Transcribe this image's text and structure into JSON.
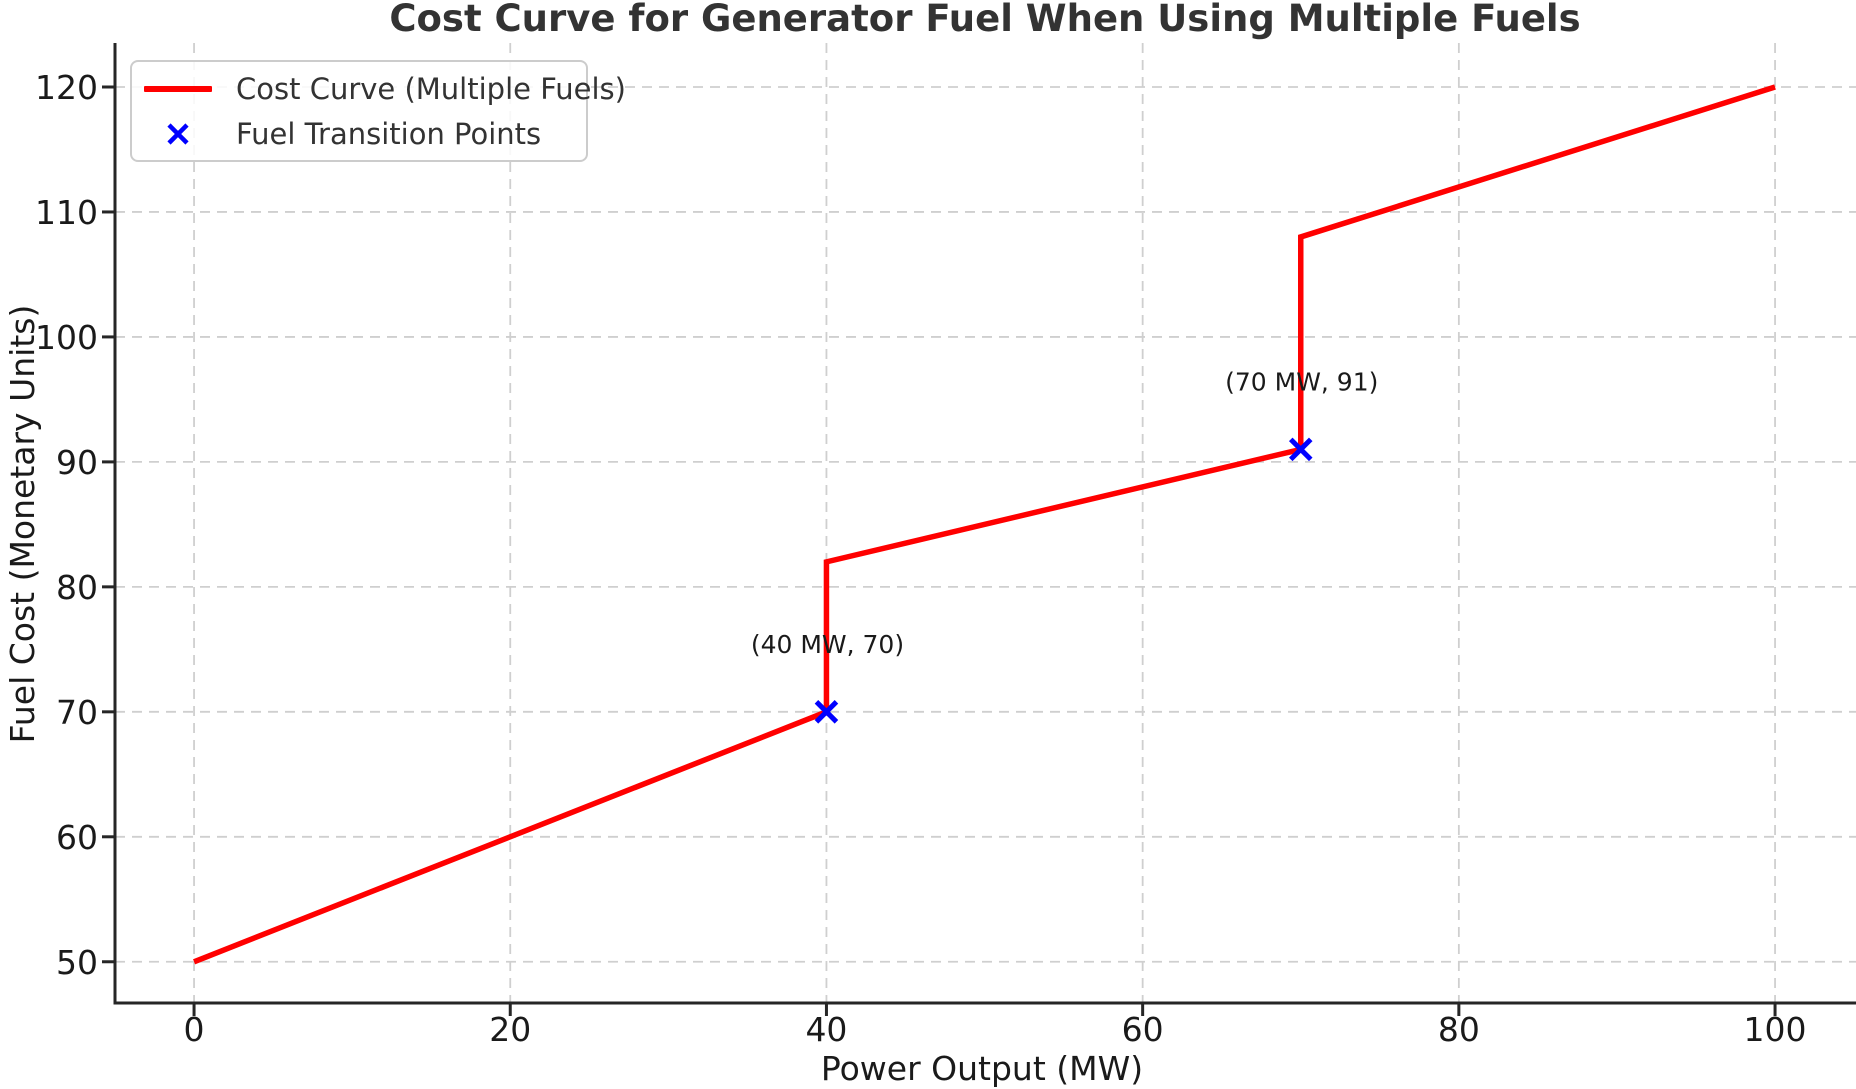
{
  "chart_data": {
    "type": "line",
    "title": "Cost Curve for Generator Fuel When Using Multiple Fuels",
    "xlabel": "Power Output (MW)",
    "ylabel": "Fuel Cost (Monetary Units)",
    "xlim": [
      -5,
      105.12
    ],
    "ylim": [
      46.7,
      123.52
    ],
    "x_ticks": [
      0,
      20,
      40,
      60,
      80,
      100
    ],
    "y_ticks": [
      50,
      60,
      70,
      80,
      90,
      100,
      110,
      120
    ],
    "grid": true,
    "grid_style": "dashed",
    "legend_position": "upper-left",
    "series": [
      {
        "name": "Cost Curve (Multiple Fuels)",
        "type": "line",
        "color": "#ff0000",
        "x": [
          0,
          40,
          40,
          70,
          70,
          100
        ],
        "y": [
          50,
          70,
          82,
          91,
          108,
          120
        ]
      },
      {
        "name": "Fuel Transition Points",
        "type": "scatter",
        "marker": "x",
        "color": "#0000ff",
        "x": [
          40,
          70
        ],
        "y": [
          70,
          91
        ]
      }
    ],
    "annotations": [
      {
        "text": "(40 MW, 70)",
        "x": 40,
        "y": 70
      },
      {
        "text": "(70 MW, 91)",
        "x": 70,
        "y": 91
      }
    ],
    "colors": {
      "grid": "#cfcfcf",
      "spine": "#262626",
      "tick_text": "#1a1a1a",
      "title_text": "#333333",
      "annotation_text": "#1a1a1a"
    }
  }
}
